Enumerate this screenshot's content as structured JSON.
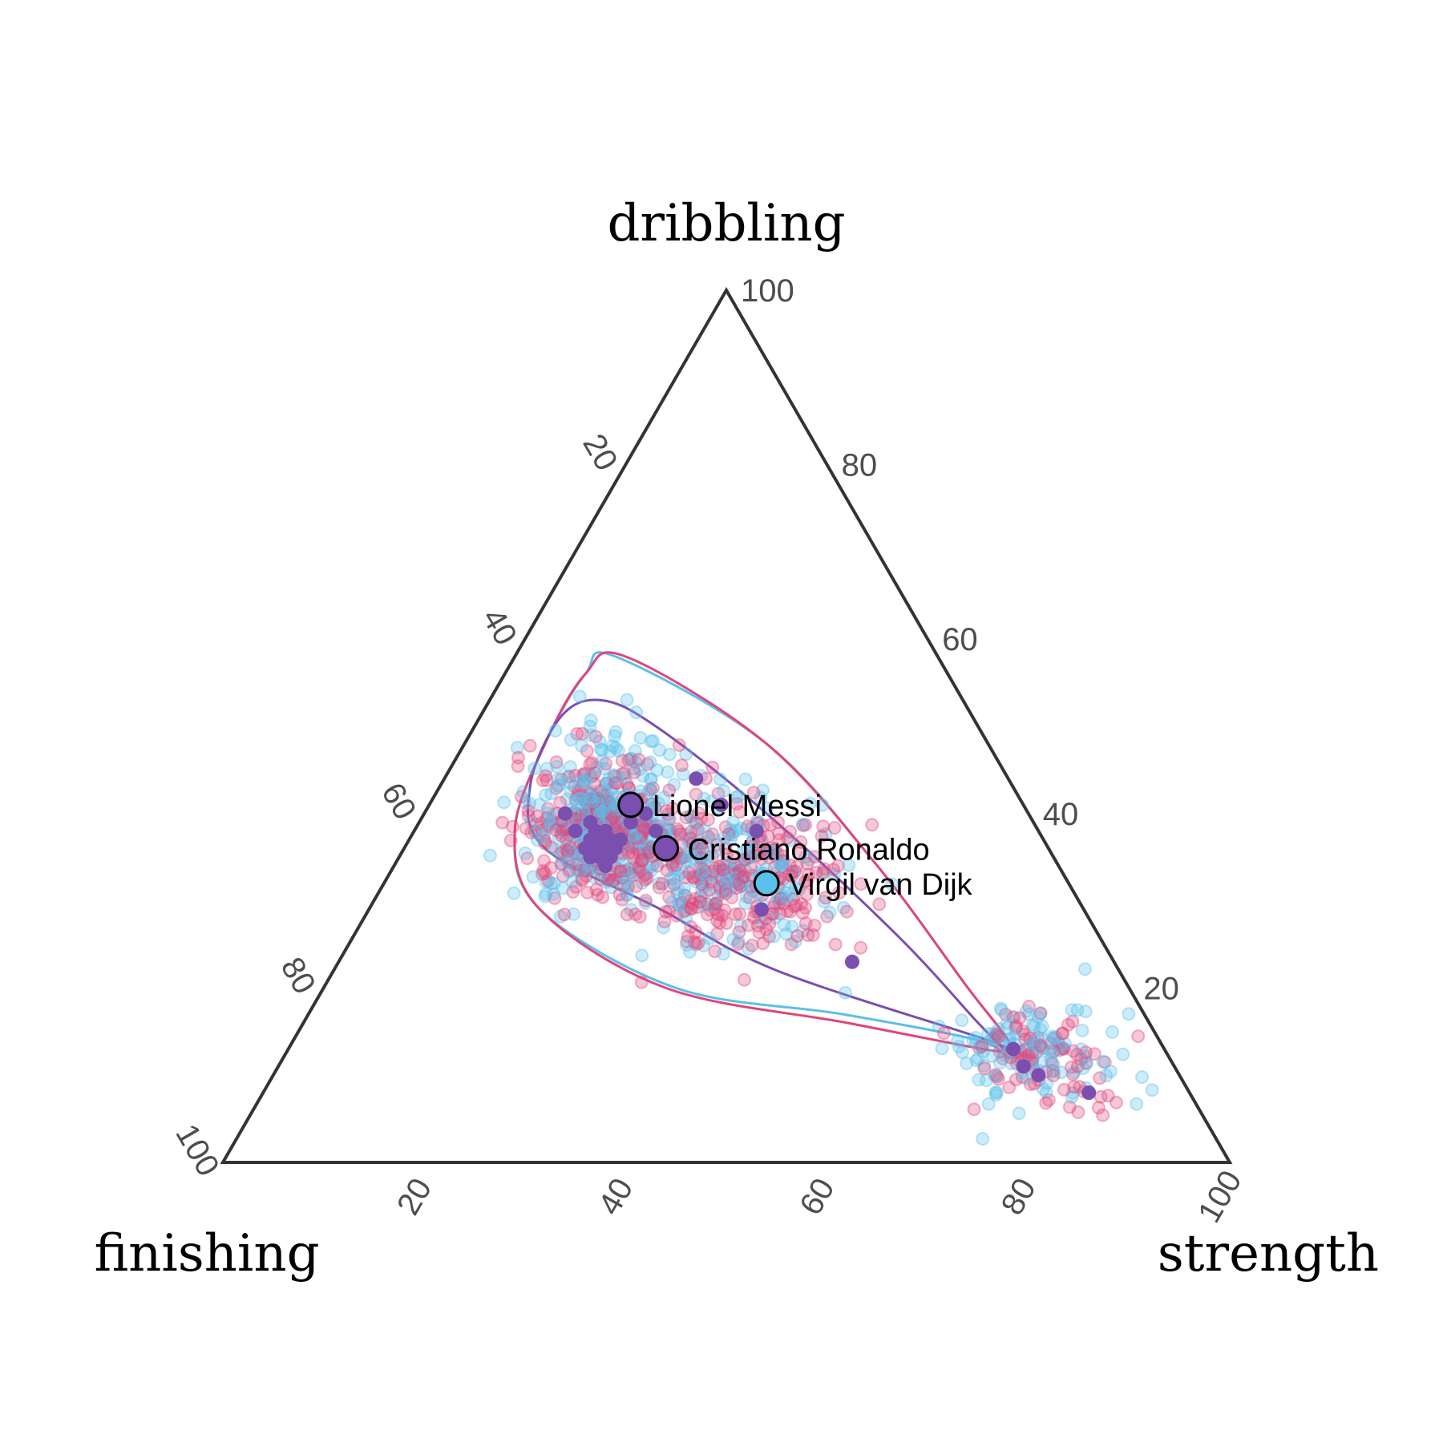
{
  "chart_data": {
    "type": "scatter",
    "subtype": "ternary",
    "axes": {
      "top": "dribbling",
      "left": "finishing",
      "right": "strength"
    },
    "ticks": {
      "dribbling": [
        "20",
        "40",
        "60",
        "80",
        "100"
      ],
      "finishing": [
        "20",
        "40",
        "60",
        "80",
        "100"
      ],
      "strength": [
        "20",
        "40",
        "60",
        "80",
        "100"
      ]
    },
    "colors": {
      "light_blue": "#5bc0eb",
      "pink": "#e0457b",
      "purple": "#7a4fb0",
      "frame": "#333333"
    },
    "scale": "percent (components sum to 100)",
    "point_opacity": 0.3,
    "point_clusters": {
      "description": "approximate point clouds in ternary % (dribbling, finishing, strength)",
      "light_blue": [
        {
          "center": [
            39,
            43,
            18
          ],
          "count": 320,
          "spread": [
            5,
            6,
            5
          ]
        },
        {
          "center": [
            33,
            33,
            34
          ],
          "count": 200,
          "spread": [
            5,
            6,
            7
          ]
        },
        {
          "center": [
            13,
            14,
            73
          ],
          "count": 110,
          "spread": [
            3,
            5,
            6
          ]
        }
      ],
      "pink": [
        {
          "center": [
            38,
            43,
            19
          ],
          "count": 360,
          "spread": [
            4,
            5,
            5
          ]
        },
        {
          "center": [
            32,
            32,
            36
          ],
          "count": 230,
          "spread": [
            5,
            6,
            7
          ]
        },
        {
          "center": [
            12,
            13,
            75
          ],
          "count": 90,
          "spread": [
            3,
            4,
            5
          ]
        }
      ]
    },
    "purple_points": [
      [
        37,
        45,
        18
      ],
      [
        36,
        44,
        20
      ],
      [
        35,
        46,
        19
      ],
      [
        38,
        43,
        19
      ],
      [
        36,
        43,
        21
      ],
      [
        37,
        42,
        21
      ],
      [
        35,
        44,
        21
      ],
      [
        38,
        44,
        18
      ],
      [
        36,
        45,
        19
      ],
      [
        34,
        45,
        21
      ],
      [
        37,
        44,
        19
      ],
      [
        39,
        44,
        17
      ],
      [
        38,
        46,
        16
      ],
      [
        36,
        46,
        18
      ],
      [
        35,
        45,
        20
      ],
      [
        37,
        43,
        20
      ],
      [
        39,
        40,
        21
      ],
      [
        40,
        38,
        22
      ],
      [
        38,
        38,
        24
      ],
      [
        44,
        31,
        25
      ],
      [
        41,
        30,
        29
      ],
      [
        38,
        28,
        34
      ],
      [
        29,
        32,
        39
      ],
      [
        23,
        26,
        51
      ],
      [
        13,
        15,
        72
      ],
      [
        11,
        15,
        74
      ],
      [
        10,
        14,
        76
      ],
      [
        8,
        10,
        82
      ],
      [
        40,
        46,
        14
      ]
    ],
    "contours": [
      {
        "color": "light_blue",
        "points": [
          [
            58,
            32,
            10
          ],
          [
            56,
            36,
            8
          ],
          [
            48,
            44,
            8
          ],
          [
            38,
            52,
            10
          ],
          [
            29,
            54,
            17
          ],
          [
            20,
            45,
            35
          ],
          [
            17,
            30,
            53
          ],
          [
            14,
            18,
            68
          ],
          [
            12,
            16,
            72
          ],
          [
            14,
            15,
            71
          ],
          [
            20,
            16,
            64
          ],
          [
            34,
            18,
            48
          ],
          [
            48,
            22,
            30
          ],
          [
            58,
            32,
            10
          ]
        ]
      },
      {
        "color": "pink",
        "points": [
          [
            58,
            31,
            11
          ],
          [
            56,
            36,
            8
          ],
          [
            48,
            44,
            8
          ],
          [
            38,
            52,
            10
          ],
          [
            29,
            54,
            17
          ],
          [
            20,
            46,
            34
          ],
          [
            16,
            30,
            54
          ],
          [
            13,
            18,
            69
          ],
          [
            13,
            16,
            71
          ],
          [
            14,
            15,
            71
          ],
          [
            20,
            16,
            64
          ],
          [
            34,
            18,
            48
          ],
          [
            48,
            22,
            30
          ],
          [
            58,
            31,
            11
          ]
        ]
      },
      {
        "color": "purple",
        "points": [
          [
            53,
            36,
            11
          ],
          [
            51,
            41,
            8
          ],
          [
            43,
            48,
            9
          ],
          [
            36,
            50,
            14
          ],
          [
            29,
            42,
            29
          ],
          [
            22,
            34,
            44
          ],
          [
            14,
            17,
            69
          ],
          [
            13,
            16,
            71
          ],
          [
            16,
            17,
            67
          ],
          [
            26,
            20,
            54
          ],
          [
            40,
            26,
            34
          ],
          [
            50,
            32,
            18
          ],
          [
            53,
            36,
            11
          ]
        ]
      }
    ],
    "labeled_points": [
      {
        "label": "Lionel Messi",
        "values": [
          41,
          39,
          20
        ],
        "fill": "purple"
      },
      {
        "label": "Cristiano Ronaldo",
        "values": [
          36,
          38,
          26
        ],
        "fill": "purple"
      },
      {
        "label": "Virgil van Dijk",
        "values": [
          32,
          30,
          38
        ],
        "fill": "light_blue"
      }
    ],
    "legend": "none",
    "grid": false
  }
}
